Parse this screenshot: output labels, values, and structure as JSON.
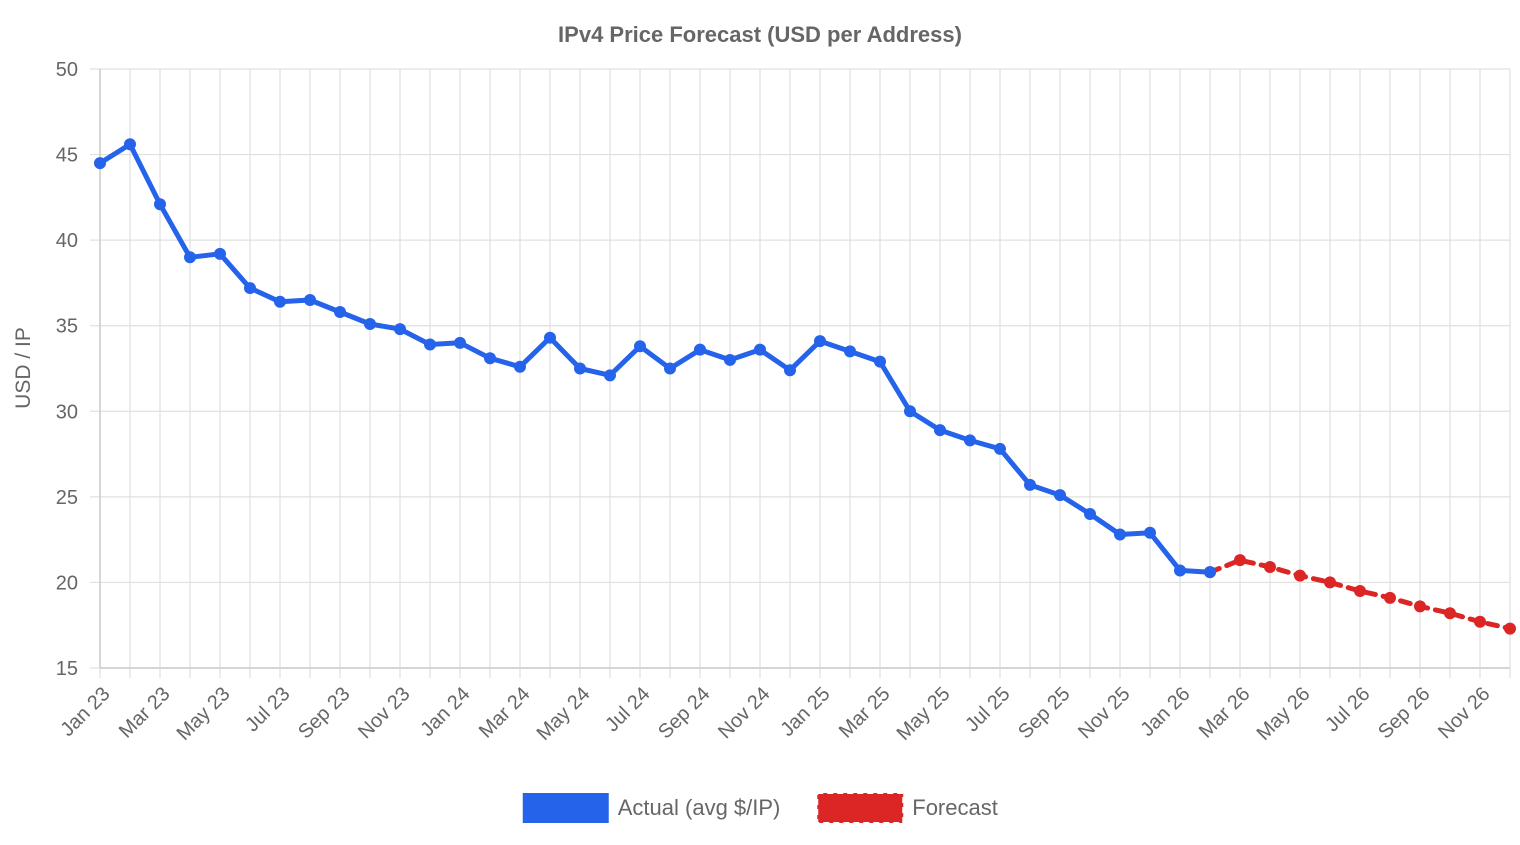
{
  "chart_data": {
    "type": "line",
    "title": "IPv4 Price Forecast (USD per Address)",
    "y_label": "USD / IP",
    "categories": [
      "Jan 23",
      null,
      "Mar 23",
      null,
      "May 23",
      null,
      "Jul 23",
      null,
      "Sep 23",
      null,
      "Nov 23",
      null,
      "Jan 24",
      null,
      "Mar 24",
      null,
      "May 24",
      null,
      "Jul 24",
      null,
      "Sep 24",
      null,
      "Nov 24",
      null,
      "Jan 25",
      null,
      "Mar 25",
      null,
      "May 25",
      null,
      "Jul 25",
      null,
      "Sep 25",
      null,
      "Nov 25",
      null,
      "Jan 26",
      null,
      "Mar 26",
      null,
      "May 26",
      null,
      "Jul 26",
      null,
      "Sep 26",
      null,
      "Nov 26",
      null
    ],
    "series": [
      {
        "name": "Actual (avg $/IP)",
        "color": "#2563eb",
        "dashed": false,
        "values": [
          44.5,
          45.6,
          42.1,
          39.0,
          39.2,
          37.2,
          36.4,
          36.5,
          35.8,
          35.1,
          34.8,
          33.9,
          34.0,
          33.1,
          32.6,
          34.3,
          32.5,
          32.1,
          33.8,
          32.5,
          33.6,
          33.0,
          33.6,
          32.4,
          34.1,
          33.5,
          32.9,
          30.0,
          28.9,
          28.3,
          27.8,
          25.7,
          25.1,
          24.0,
          22.8,
          22.9,
          20.7,
          20.6,
          null,
          null,
          null,
          null,
          null,
          null,
          null,
          null,
          null,
          null
        ]
      },
      {
        "name": "Forecast",
        "color": "#dc2626",
        "dashed": true,
        "values": [
          null,
          null,
          null,
          null,
          null,
          null,
          null,
          null,
          null,
          null,
          null,
          null,
          null,
          null,
          null,
          null,
          null,
          null,
          null,
          null,
          null,
          null,
          null,
          null,
          null,
          null,
          null,
          null,
          null,
          null,
          null,
          null,
          null,
          null,
          null,
          null,
          null,
          20.6,
          21.3,
          20.9,
          20.4,
          20.0,
          19.5,
          19.1,
          18.6,
          18.2,
          17.7,
          17.3
        ]
      }
    ],
    "ylim": [
      15,
      50
    ],
    "yticks": [
      15,
      20,
      25,
      30,
      35,
      40,
      45,
      50
    ],
    "grid": true,
    "legend": "bottom"
  }
}
